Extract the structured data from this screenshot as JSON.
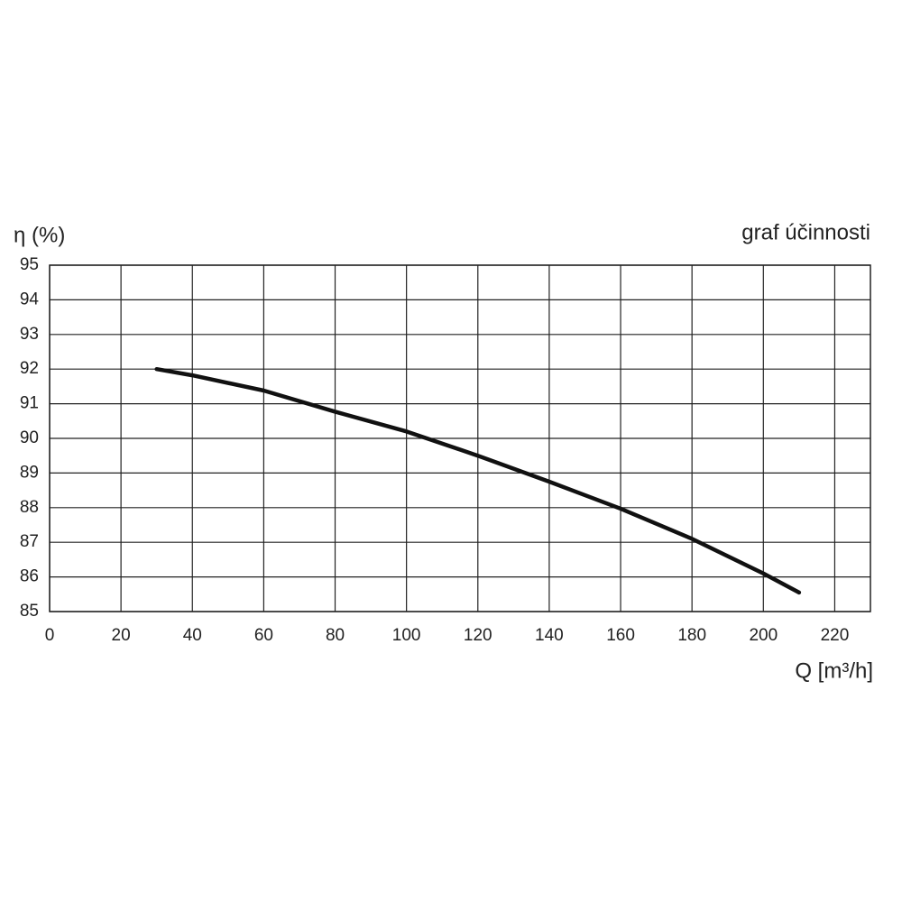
{
  "chart_data": {
    "type": "line",
    "title": "graf účinnosti",
    "y_label": "η (%)",
    "x_label": "Q [m³/h]",
    "x": [
      30,
      40,
      60,
      80,
      100,
      120,
      140,
      160,
      180,
      200,
      210
    ],
    "values": [
      92.0,
      91.82,
      91.38,
      90.77,
      90.2,
      89.5,
      88.75,
      87.97,
      87.1,
      86.1,
      85.55
    ],
    "color": "#111111",
    "xlim": [
      0,
      230
    ],
    "xticks": [
      0,
      20,
      40,
      60,
      80,
      100,
      120,
      140,
      160,
      180,
      200,
      220
    ],
    "ylim": [
      85,
      95
    ],
    "yticks": [
      85,
      86,
      87,
      88,
      89,
      90,
      91,
      92,
      93,
      94,
      95
    ],
    "grid": true
  }
}
